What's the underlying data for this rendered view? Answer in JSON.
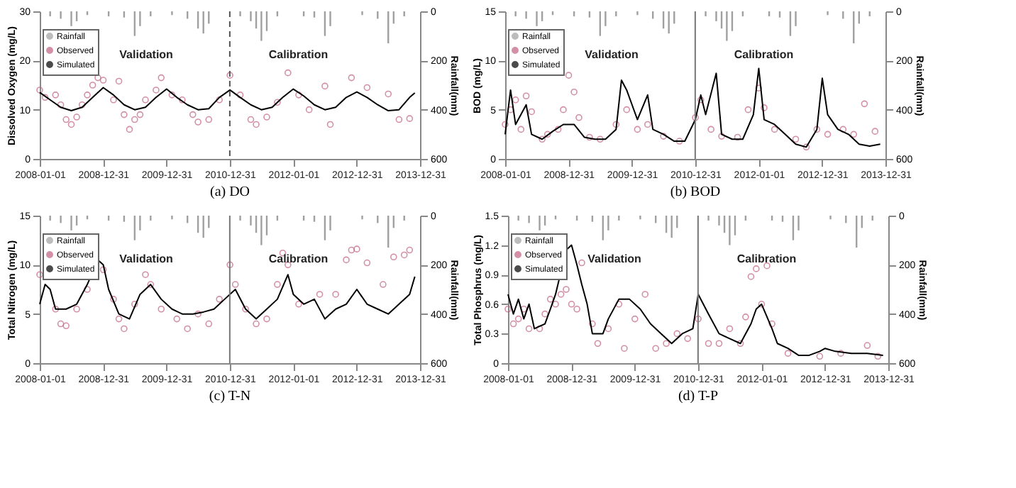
{
  "chart_data": [
    {
      "type": "line",
      "title": "(a)  DO",
      "ylabel": "Dissolved Oxygen (mg/L)",
      "y2label": "Rainfall(mm)",
      "xlim": [
        "2008-01-01",
        "2013-12-31"
      ],
      "xticks": [
        "2008-01-01",
        "2008-12-31",
        "2009-12-31",
        "2010-12-31",
        "2012-01-01",
        "2012-12-31",
        "2013-12-31"
      ],
      "ylim": [
        0,
        30
      ],
      "yticks": [
        0,
        10,
        20,
        30
      ],
      "y2lim": [
        600,
        0
      ],
      "y2ticks": [
        0,
        200,
        400,
        600
      ],
      "legend": "top left",
      "annotations": [
        "Validation",
        "Calibration"
      ],
      "ref_lines": [
        {
          "axis": "x",
          "value": "2010-12-31",
          "line_style": "dashed",
          "color": "#555555"
        }
      ],
      "series": [
        {
          "name": "Rainfall",
          "type": "bar",
          "axis": "y2",
          "color": "#a0a0a0",
          "x": [
            "2008-03",
            "2008-05",
            "2008-07",
            "2008-08",
            "2008-10",
            "2009-02",
            "2009-05",
            "2009-07",
            "2009-08",
            "2009-10",
            "2010-02",
            "2010-05",
            "2010-07",
            "2010-08",
            "2010-09",
            "2011-03",
            "2011-05",
            "2011-06",
            "2011-07",
            "2011-08",
            "2011-10",
            "2012-03",
            "2012-05",
            "2012-07",
            "2012-08",
            "2013-02",
            "2013-05",
            "2013-07",
            "2013-08",
            "2013-10"
          ],
          "values": [
            20,
            30,
            60,
            40,
            15,
            20,
            25,
            100,
            60,
            20,
            15,
            30,
            70,
            90,
            50,
            20,
            40,
            70,
            120,
            80,
            20,
            20,
            25,
            100,
            60,
            15,
            30,
            130,
            50,
            20
          ]
        },
        {
          "name": "Observed",
          "type": "scatter",
          "marker": "circle",
          "color": "#c06080",
          "x": [
            "2008-01",
            "2008-02",
            "2008-04",
            "2008-05",
            "2008-06",
            "2008-07",
            "2008-08",
            "2008-09",
            "2008-10",
            "2008-11",
            "2008-12",
            "2009-01",
            "2009-03",
            "2009-04",
            "2009-05",
            "2009-06",
            "2009-07",
            "2009-08",
            "2009-09",
            "2009-11",
            "2009-12",
            "2010-02",
            "2010-04",
            "2010-06",
            "2010-07",
            "2010-09",
            "2010-11",
            "2011-01",
            "2011-03",
            "2011-05",
            "2011-06",
            "2011-08",
            "2011-10",
            "2011-12",
            "2012-02",
            "2012-04",
            "2012-07",
            "2012-08",
            "2012-12",
            "2013-03",
            "2013-07",
            "2013-09",
            "2013-11"
          ],
          "values": [
            14,
            12.5,
            13,
            11,
            8,
            7,
            8.5,
            11,
            13,
            15,
            16.5,
            16,
            12,
            15.8,
            9,
            6,
            8,
            9,
            12,
            14,
            16.5,
            13,
            12,
            9,
            7.5,
            8,
            12,
            17,
            13,
            8,
            7,
            8.5,
            11.5,
            17.5,
            13,
            10,
            14.8,
            7,
            16.5,
            14.5,
            13.2,
            8,
            8.2
          ]
        },
        {
          "name": "Simulated",
          "type": "line",
          "color": "#000000",
          "x": [
            "2008-01",
            "2008-03",
            "2008-05",
            "2008-07",
            "2008-09",
            "2008-11",
            "2009-01",
            "2009-03",
            "2009-05",
            "2009-07",
            "2009-09",
            "2009-11",
            "2010-01",
            "2010-03",
            "2010-05",
            "2010-07",
            "2010-09",
            "2010-11",
            "2011-01",
            "2011-03",
            "2011-05",
            "2011-07",
            "2011-09",
            "2011-11",
            "2012-01",
            "2012-03",
            "2012-05",
            "2012-07",
            "2012-09",
            "2012-11",
            "2013-01",
            "2013-03",
            "2013-05",
            "2013-07",
            "2013-09",
            "2013-11",
            "2013-12"
          ],
          "values": [
            13.5,
            12,
            10.5,
            9.8,
            10.5,
            12.5,
            14.5,
            13,
            11,
            10,
            10.5,
            12.5,
            14.2,
            12.5,
            11,
            10,
            10.2,
            12.5,
            14,
            12.5,
            11,
            10,
            10.5,
            12.5,
            14.2,
            12.8,
            11,
            10,
            10.5,
            12.5,
            13.6,
            12.5,
            11,
            9.8,
            10,
            12.5,
            13.4
          ]
        }
      ]
    },
    {
      "type": "line",
      "title": "(b)  BOD",
      "ylabel": "BOD (mg/L)",
      "y2label": "Rainfall(mm)",
      "xlim": [
        "2008-01-01",
        "2013-12-31"
      ],
      "xticks": [
        "2008-01-01",
        "2008-12-31",
        "2009-12-31",
        "2010-12-31",
        "2012-01-01",
        "2012-12-31",
        "2013-12-31"
      ],
      "ylim": [
        0,
        15
      ],
      "yticks": [
        0,
        5,
        10,
        15
      ],
      "y2lim": [
        600,
        0
      ],
      "y2ticks": [
        0,
        200,
        400,
        600
      ],
      "legend": "top left",
      "annotations": [
        "Validation",
        "Calibration"
      ],
      "ref_lines": [
        {
          "axis": "x",
          "value": "2010-12-31",
          "line_style": "solid",
          "color": "#777777"
        }
      ],
      "series": [
        {
          "name": "Rainfall",
          "type": "bar",
          "axis": "y2",
          "color": "#a0a0a0",
          "x": [
            "2008-03",
            "2008-05",
            "2008-07",
            "2008-08",
            "2008-10",
            "2009-02",
            "2009-05",
            "2009-07",
            "2009-08",
            "2009-10",
            "2010-02",
            "2010-05",
            "2010-07",
            "2010-08",
            "2010-09",
            "2011-03",
            "2011-05",
            "2011-06",
            "2011-07",
            "2011-08",
            "2011-10",
            "2012-03",
            "2012-05",
            "2012-07",
            "2012-08",
            "2013-02",
            "2013-05",
            "2013-07",
            "2013-08",
            "2013-10"
          ],
          "values": [
            20,
            30,
            60,
            40,
            15,
            20,
            25,
            100,
            60,
            20,
            15,
            30,
            70,
            90,
            50,
            20,
            40,
            70,
            120,
            80,
            20,
            20,
            25,
            100,
            60,
            15,
            30,
            130,
            50,
            20
          ]
        },
        {
          "name": "Observed",
          "type": "scatter",
          "marker": "circle",
          "color": "#c06080",
          "x": [
            "2008-01",
            "2008-02",
            "2008-03",
            "2008-04",
            "2008-05",
            "2008-06",
            "2008-08",
            "2008-09",
            "2008-11",
            "2008-12",
            "2009-01",
            "2009-02",
            "2009-03",
            "2009-05",
            "2009-07",
            "2009-10",
            "2009-12",
            "2010-02",
            "2010-04",
            "2010-07",
            "2010-10",
            "2011-01",
            "2011-02",
            "2011-04",
            "2011-06",
            "2011-09",
            "2011-11",
            "2012-01",
            "2012-02",
            "2012-04",
            "2012-08",
            "2012-10",
            "2012-12",
            "2013-02",
            "2013-05",
            "2013-07",
            "2013-09",
            "2013-11"
          ],
          "values": [
            3.5,
            5,
            6,
            3,
            6.4,
            4.8,
            2,
            2.5,
            3,
            5,
            8.5,
            6.8,
            4.2,
            2.2,
            2,
            3.5,
            5,
            3,
            3.5,
            2.3,
            1.8,
            4.2,
            6,
            3,
            2.3,
            2.2,
            5,
            7.2,
            5.2,
            3,
            2,
            1.2,
            3,
            2.5,
            3,
            2.5,
            5.6,
            2.8
          ]
        },
        {
          "name": "Simulated",
          "type": "line",
          "color": "#000000",
          "x": [
            "2008-01",
            "2008-02",
            "2008-03",
            "2008-05",
            "2008-06",
            "2008-08",
            "2008-10",
            "2008-12",
            "2009-02",
            "2009-04",
            "2009-06",
            "2009-08",
            "2009-10",
            "2009-11",
            "2009-12",
            "2010-01",
            "2010-02",
            "2010-04",
            "2010-05",
            "2010-07",
            "2010-09",
            "2010-11",
            "2011-01",
            "2011-02",
            "2011-03",
            "2011-05",
            "2011-06",
            "2011-08",
            "2011-10",
            "2011-12",
            "2012-01",
            "2012-02",
            "2012-04",
            "2012-06",
            "2012-08",
            "2012-10",
            "2012-12",
            "2013-01",
            "2013-02",
            "2013-04",
            "2013-06",
            "2013-08",
            "2013-10",
            "2013-12"
          ],
          "values": [
            2.5,
            7,
            3.5,
            5.5,
            2.5,
            2,
            2.8,
            3.5,
            3.5,
            2.2,
            2,
            2,
            3,
            8,
            7,
            5.5,
            4,
            6.5,
            3,
            2.5,
            1.8,
            1.8,
            4,
            6.5,
            4.5,
            8.7,
            2.5,
            2,
            2,
            4.5,
            9.2,
            4,
            3.5,
            2.5,
            1.5,
            1.2,
            3,
            8.2,
            4.5,
            3,
            2.5,
            1.5,
            1.3,
            1.5
          ]
        }
      ]
    },
    {
      "type": "line",
      "title": "(c)  T-N",
      "ylabel": "Total Nitrogen (mg/L)",
      "y2label": "Rainfall(mm)",
      "xlim": [
        "2008-01-01",
        "2013-12-31"
      ],
      "xticks": [
        "2008-01-01",
        "2008-12-31",
        "2009-12-31",
        "2010-12-31",
        "2012-01-01",
        "2012-12-31",
        "2013-12-31"
      ],
      "ylim": [
        0,
        15
      ],
      "yticks": [
        0,
        5,
        10,
        15
      ],
      "y2lim": [
        600,
        0
      ],
      "y2ticks": [
        0,
        200,
        400,
        600
      ],
      "legend": "top left",
      "annotations": [
        "Validation",
        "Calibration"
      ],
      "ref_lines": [
        {
          "axis": "x",
          "value": "2010-12-31",
          "line_style": "solid",
          "color": "#777777"
        }
      ],
      "series": [
        {
          "name": "Rainfall",
          "type": "bar",
          "axis": "y2",
          "color": "#a0a0a0",
          "x": [
            "2008-03",
            "2008-05",
            "2008-07",
            "2008-08",
            "2008-10",
            "2009-02",
            "2009-05",
            "2009-07",
            "2009-08",
            "2009-10",
            "2010-02",
            "2010-05",
            "2010-07",
            "2010-08",
            "2010-09",
            "2011-03",
            "2011-05",
            "2011-06",
            "2011-07",
            "2011-08",
            "2011-10",
            "2012-03",
            "2012-05",
            "2012-07",
            "2012-08",
            "2013-02",
            "2013-05",
            "2013-07",
            "2013-08",
            "2013-10"
          ],
          "values": [
            20,
            30,
            60,
            40,
            15,
            20,
            25,
            100,
            60,
            20,
            15,
            30,
            70,
            90,
            50,
            20,
            40,
            70,
            120,
            80,
            20,
            20,
            25,
            100,
            60,
            15,
            30,
            130,
            50,
            20
          ]
        },
        {
          "name": "Observed",
          "type": "scatter",
          "marker": "circle",
          "color": "#c06080",
          "x": [
            "2008-01",
            "2008-04",
            "2008-05",
            "2008-06",
            "2008-08",
            "2008-10",
            "2009-01",
            "2009-03",
            "2009-04",
            "2009-05",
            "2009-07",
            "2009-09",
            "2009-10",
            "2009-12",
            "2010-03",
            "2010-05",
            "2010-07",
            "2010-09",
            "2010-11",
            "2011-01",
            "2011-02",
            "2011-04",
            "2011-06",
            "2011-08",
            "2011-10",
            "2011-11",
            "2011-12",
            "2012-02",
            "2012-06",
            "2012-09",
            "2012-11",
            "2012-12",
            "2013-01",
            "2013-03",
            "2013-06",
            "2013-08",
            "2013-10",
            "2013-11"
          ],
          "values": [
            9,
            5.5,
            4,
            3.8,
            5.5,
            7.5,
            9.5,
            6.5,
            4.5,
            3.5,
            6,
            9,
            8,
            5.5,
            4.5,
            3.5,
            5,
            4,
            6.5,
            10,
            8,
            5.5,
            4,
            4.5,
            8,
            11.2,
            10,
            6,
            7,
            7,
            10.5,
            11.5,
            11.6,
            10.2,
            8,
            10.8,
            11,
            11.5
          ]
        },
        {
          "name": "Simulated",
          "type": "line",
          "color": "#000000",
          "x": [
            "2008-01",
            "2008-02",
            "2008-03",
            "2008-04",
            "2008-06",
            "2008-08",
            "2008-10",
            "2008-12",
            "2009-01",
            "2009-02",
            "2009-04",
            "2009-06",
            "2009-08",
            "2009-10",
            "2009-12",
            "2010-02",
            "2010-04",
            "2010-06",
            "2010-08",
            "2010-10",
            "2010-12",
            "2011-02",
            "2011-04",
            "2011-06",
            "2011-08",
            "2011-10",
            "2011-12",
            "2012-01",
            "2012-03",
            "2012-05",
            "2012-07",
            "2012-09",
            "2012-11",
            "2013-01",
            "2013-03",
            "2013-05",
            "2013-07",
            "2013-09",
            "2013-11",
            "2013-12"
          ],
          "values": [
            6,
            8,
            7.5,
            5.5,
            5.5,
            6,
            8,
            10.5,
            10,
            7.5,
            5,
            4.5,
            7,
            8,
            6.5,
            5.5,
            5,
            5,
            5.2,
            5.5,
            6.5,
            7.5,
            5.5,
            4.5,
            5.5,
            6.5,
            9,
            7,
            6,
            6.5,
            4.5,
            5.5,
            6,
            7.5,
            6,
            5.5,
            5,
            6,
            7,
            8.8
          ]
        }
      ]
    },
    {
      "type": "line",
      "title": "(d)  T-P",
      "ylabel": "Total Phosphrus (mg/L)",
      "y2label": "Rainfall(mm)",
      "xlim": [
        "2008-01-01",
        "2013-12-31"
      ],
      "xticks": [
        "2008-01-01",
        "2008-12-31",
        "2009-12-31",
        "2010-12-31",
        "2012-01-01",
        "2012-12-31",
        "2013-12-31"
      ],
      "ylim": [
        0,
        1.5
      ],
      "yticks": [
        0,
        0.3,
        0.6,
        0.9,
        1.2,
        1.5
      ],
      "y2lim": [
        600,
        0
      ],
      "y2ticks": [
        0,
        200,
        400,
        600
      ],
      "legend": "top left",
      "annotations": [
        "Validation",
        "Calibration"
      ],
      "ref_lines": [
        {
          "axis": "x",
          "value": "2010-12-31",
          "line_style": "solid",
          "color": "#777777"
        }
      ],
      "series": [
        {
          "name": "Rainfall",
          "type": "bar",
          "axis": "y2",
          "color": "#a0a0a0",
          "x": [
            "2008-03",
            "2008-05",
            "2008-07",
            "2008-08",
            "2008-10",
            "2009-02",
            "2009-05",
            "2009-07",
            "2009-08",
            "2009-10",
            "2010-02",
            "2010-05",
            "2010-07",
            "2010-08",
            "2010-09",
            "2011-03",
            "2011-05",
            "2011-06",
            "2011-07",
            "2011-08",
            "2011-10",
            "2012-03",
            "2012-05",
            "2012-07",
            "2012-08",
            "2013-02",
            "2013-05",
            "2013-07",
            "2013-08",
            "2013-10"
          ],
          "values": [
            20,
            30,
            60,
            40,
            15,
            20,
            25,
            100,
            60,
            20,
            15,
            30,
            70,
            90,
            50,
            20,
            40,
            70,
            120,
            80,
            20,
            20,
            25,
            100,
            60,
            15,
            30,
            130,
            50,
            20
          ]
        },
        {
          "name": "Observed",
          "type": "scatter",
          "marker": "circle",
          "color": "#c06080",
          "x": [
            "2008-01",
            "2008-02",
            "2008-03",
            "2008-04",
            "2008-05",
            "2008-07",
            "2008-08",
            "2008-09",
            "2008-10",
            "2008-11",
            "2008-12",
            "2009-01",
            "2009-02",
            "2009-03",
            "2009-05",
            "2009-06",
            "2009-08",
            "2009-10",
            "2009-11",
            "2010-01",
            "2010-03",
            "2010-05",
            "2010-07",
            "2010-09",
            "2010-11",
            "2011-01",
            "2011-03",
            "2011-05",
            "2011-07",
            "2011-09",
            "2011-10",
            "2011-11",
            "2011-12",
            "2012-01",
            "2012-02",
            "2012-03",
            "2012-06",
            "2012-12",
            "2013-04",
            "2013-09",
            "2013-11"
          ],
          "values": [
            0.55,
            0.4,
            0.45,
            0.55,
            0.35,
            0.35,
            0.5,
            0.65,
            0.6,
            0.7,
            0.75,
            0.6,
            0.55,
            1.02,
            0.4,
            0.2,
            0.35,
            0.6,
            0.15,
            0.45,
            0.7,
            0.15,
            0.2,
            0.3,
            0.25,
            0.45,
            0.2,
            0.2,
            0.35,
            0.2,
            0.47,
            0.88,
            0.96,
            0.6,
            0.99,
            0.4,
            0.1,
            0.07,
            0.1,
            0.18,
            0.07
          ]
        },
        {
          "name": "Simulated",
          "type": "line",
          "color": "#000000",
          "x": [
            "2008-01",
            "2008-02",
            "2008-03",
            "2008-04",
            "2008-05",
            "2008-06",
            "2008-08",
            "2008-09",
            "2008-10",
            "2008-12",
            "2009-01",
            "2009-02",
            "2009-03",
            "2009-04",
            "2009-05",
            "2009-07",
            "2009-08",
            "2009-10",
            "2009-12",
            "2010-02",
            "2010-04",
            "2010-06",
            "2010-08",
            "2010-10",
            "2010-12",
            "2011-01",
            "2011-03",
            "2011-05",
            "2011-07",
            "2011-09",
            "2011-11",
            "2011-12",
            "2012-01",
            "2012-03",
            "2012-04",
            "2012-06",
            "2012-08",
            "2012-10",
            "2012-12",
            "2013-01",
            "2013-03",
            "2013-06",
            "2013-09",
            "2013-12"
          ],
          "values": [
            0.7,
            0.5,
            0.65,
            0.45,
            0.6,
            0.35,
            0.4,
            0.55,
            0.7,
            1.15,
            1.2,
            1,
            0.8,
            0.6,
            0.3,
            0.3,
            0.45,
            0.65,
            0.65,
            0.55,
            0.4,
            0.3,
            0.2,
            0.3,
            0.35,
            0.7,
            0.5,
            0.3,
            0.25,
            0.2,
            0.4,
            0.55,
            0.6,
            0.35,
            0.2,
            0.15,
            0.08,
            0.08,
            0.12,
            0.15,
            0.12,
            0.1,
            0.1,
            0.08
          ]
        }
      ]
    }
  ]
}
